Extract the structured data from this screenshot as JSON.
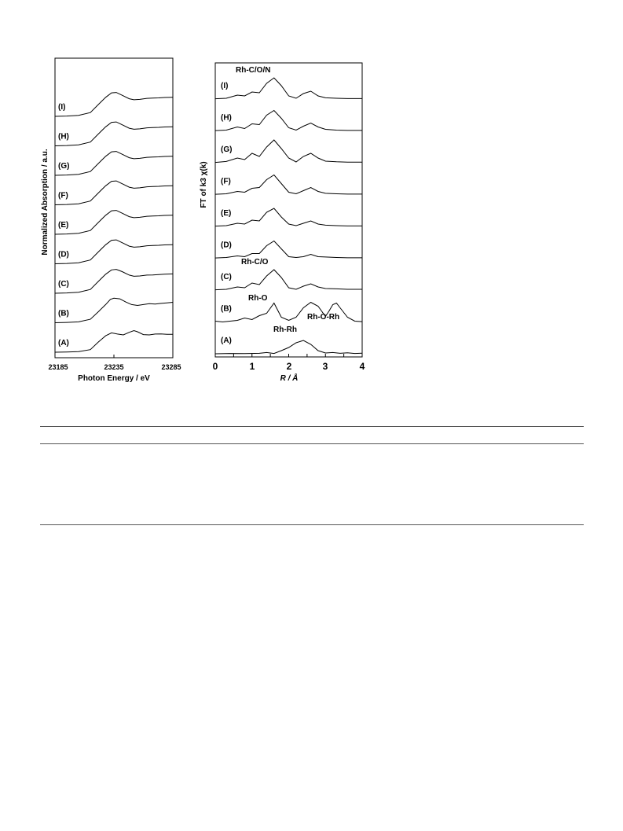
{
  "chart_data": [
    {
      "type": "line",
      "xlabel": "Photon Energy / eV",
      "ylabel": "Normalized Absorption / a.u.",
      "xlim": [
        23185,
        23285
      ],
      "xticks": [
        "23185",
        "23235",
        "23285"
      ],
      "grid": false,
      "series": [
        {
          "name": "(A)",
          "x": [
            23185,
            23195,
            23205,
            23215,
            23222,
            23228,
            23233,
            23238,
            23243,
            23248,
            23252,
            23255,
            23260,
            23265,
            23270,
            23275,
            23280,
            23285
          ],
          "y": [
            0.0,
            0.01,
            0.03,
            0.15,
            0.6,
            0.95,
            1.12,
            1.05,
            1.0,
            1.15,
            1.25,
            1.18,
            1.02,
            1.0,
            1.05,
            1.06,
            1.03,
            1.03
          ]
        },
        {
          "name": "(B)",
          "x": [
            23185,
            23195,
            23205,
            23215,
            23222,
            23228,
            23232,
            23235,
            23240,
            23245,
            23250,
            23255,
            23260,
            23265,
            23270,
            23275,
            23280,
            23285
          ],
          "y": [
            0.0,
            0.02,
            0.05,
            0.2,
            0.65,
            1.05,
            1.35,
            1.42,
            1.38,
            1.2,
            1.05,
            1.0,
            1.05,
            1.1,
            1.08,
            1.12,
            1.15,
            1.18
          ]
        },
        {
          "name": "(C)",
          "x": [
            23185,
            23195,
            23205,
            23215,
            23222,
            23228,
            23233,
            23237,
            23242,
            23248,
            23252,
            23257,
            23263,
            23268,
            23273,
            23278,
            23285
          ],
          "y": [
            0.0,
            0.02,
            0.06,
            0.22,
            0.7,
            1.1,
            1.35,
            1.38,
            1.25,
            1.05,
            0.98,
            1.0,
            1.05,
            1.06,
            1.08,
            1.1,
            1.12
          ]
        },
        {
          "name": "(D)",
          "x": [
            23185,
            23195,
            23205,
            23215,
            23222,
            23228,
            23233,
            23237,
            23242,
            23248,
            23252,
            23257,
            23263,
            23268,
            23273,
            23278,
            23285
          ],
          "y": [
            0.0,
            0.02,
            0.06,
            0.22,
            0.7,
            1.1,
            1.36,
            1.38,
            1.22,
            1.02,
            0.96,
            0.98,
            1.04,
            1.06,
            1.07,
            1.09,
            1.1
          ]
        },
        {
          "name": "(E)",
          "x": [
            23185,
            23195,
            23205,
            23215,
            23222,
            23228,
            23233,
            23237,
            23242,
            23248,
            23252,
            23257,
            23263,
            23268,
            23273,
            23278,
            23285
          ],
          "y": [
            0.0,
            0.02,
            0.06,
            0.22,
            0.7,
            1.1,
            1.36,
            1.38,
            1.22,
            1.02,
            0.96,
            0.98,
            1.04,
            1.06,
            1.07,
            1.09,
            1.1
          ]
        },
        {
          "name": "(F)",
          "x": [
            23185,
            23195,
            23205,
            23215,
            23222,
            23228,
            23233,
            23237,
            23242,
            23248,
            23252,
            23257,
            23263,
            23268,
            23273,
            23278,
            23285
          ],
          "y": [
            0.0,
            0.02,
            0.06,
            0.22,
            0.7,
            1.1,
            1.36,
            1.38,
            1.22,
            1.02,
            0.96,
            0.98,
            1.04,
            1.06,
            1.07,
            1.09,
            1.1
          ]
        },
        {
          "name": "(G)",
          "x": [
            23185,
            23195,
            23205,
            23215,
            23222,
            23228,
            23233,
            23237,
            23242,
            23248,
            23252,
            23257,
            23263,
            23268,
            23273,
            23278,
            23285
          ],
          "y": [
            0.0,
            0.02,
            0.06,
            0.22,
            0.7,
            1.1,
            1.36,
            1.38,
            1.22,
            1.02,
            0.96,
            0.98,
            1.04,
            1.06,
            1.07,
            1.09,
            1.1
          ]
        },
        {
          "name": "(H)",
          "x": [
            23185,
            23195,
            23205,
            23215,
            23222,
            23228,
            23233,
            23237,
            23242,
            23248,
            23252,
            23257,
            23263,
            23268,
            23273,
            23278,
            23285
          ],
          "y": [
            0.0,
            0.02,
            0.06,
            0.22,
            0.7,
            1.1,
            1.36,
            1.38,
            1.22,
            1.02,
            0.96,
            0.98,
            1.04,
            1.06,
            1.07,
            1.09,
            1.1
          ]
        },
        {
          "name": "(I)",
          "x": [
            23185,
            23195,
            23205,
            23215,
            23222,
            23228,
            23233,
            23237,
            23242,
            23248,
            23252,
            23257,
            23263,
            23268,
            23273,
            23278,
            23285
          ],
          "y": [
            0.0,
            0.02,
            0.06,
            0.22,
            0.7,
            1.1,
            1.36,
            1.38,
            1.22,
            1.02,
            0.96,
            0.98,
            1.04,
            1.06,
            1.07,
            1.09,
            1.1
          ]
        }
      ]
    },
    {
      "type": "line",
      "xlabel": "R / Å",
      "ylabel": "FT of k3 χ(k)",
      "xlim": [
        0,
        4
      ],
      "xticks": [
        "0",
        "1",
        "2",
        "3",
        "4"
      ],
      "grid": false,
      "annotations": [
        "Rh-C/O/N",
        "Rh-C/O",
        "Rh-O",
        "Rh-O-Rh",
        "Rh-Rh"
      ],
      "series": [
        {
          "name": "(A)",
          "x": [
            0,
            0.4,
            0.8,
            1.2,
            1.4,
            1.6,
            1.8,
            2.0,
            2.2,
            2.4,
            2.6,
            2.8,
            3.0,
            3.2,
            3.4,
            3.6,
            3.8,
            4.0
          ],
          "y": [
            0.0,
            0.02,
            0.01,
            0.03,
            0.08,
            0.02,
            0.2,
            0.4,
            0.7,
            0.85,
            0.6,
            0.2,
            0.05,
            0.08,
            0.03,
            0.06,
            0.02,
            0.04
          ]
        },
        {
          "name": "(B)",
          "x": [
            0,
            0.2,
            0.4,
            0.6,
            0.8,
            1.0,
            1.2,
            1.4,
            1.6,
            1.8,
            2.0,
            2.2,
            2.4,
            2.6,
            2.8,
            3.0,
            3.1,
            3.2,
            3.3,
            3.4,
            3.6,
            3.8,
            4.0
          ],
          "y": [
            0.05,
            0.0,
            0.05,
            0.1,
            0.25,
            0.15,
            0.4,
            0.55,
            1.2,
            0.3,
            0.1,
            0.3,
            0.9,
            1.25,
            1.0,
            0.35,
            0.7,
            1.1,
            1.2,
            0.9,
            0.3,
            0.05,
            0.02
          ]
        },
        {
          "name": "(C)",
          "x": [
            0,
            0.3,
            0.6,
            0.8,
            1.0,
            1.2,
            1.4,
            1.6,
            1.8,
            2.0,
            2.2,
            2.4,
            2.6,
            2.8,
            3.0,
            3.3,
            3.6,
            4.0
          ],
          "y": [
            0.02,
            0.05,
            0.2,
            0.15,
            0.45,
            0.35,
            0.9,
            1.3,
            0.8,
            0.15,
            0.05,
            0.25,
            0.4,
            0.2,
            0.1,
            0.08,
            0.05,
            0.05
          ]
        },
        {
          "name": "(D)",
          "x": [
            0,
            0.3,
            0.6,
            0.8,
            1.0,
            1.2,
            1.4,
            1.6,
            1.8,
            2.0,
            2.2,
            2.4,
            2.6,
            2.8,
            3.0,
            3.3,
            3.6,
            4.0
          ],
          "y": [
            0.02,
            0.05,
            0.15,
            0.1,
            0.3,
            0.3,
            0.8,
            1.1,
            0.6,
            0.1,
            0.05,
            0.1,
            0.25,
            0.1,
            0.08,
            0.05,
            0.03,
            0.03
          ]
        },
        {
          "name": "(E)",
          "x": [
            0,
            0.3,
            0.6,
            0.8,
            1.0,
            1.2,
            1.4,
            1.6,
            1.8,
            2.0,
            2.2,
            2.4,
            2.6,
            2.8,
            3.0,
            3.3,
            3.6,
            4.0
          ],
          "y": [
            0.02,
            0.05,
            0.2,
            0.15,
            0.4,
            0.35,
            0.9,
            1.15,
            0.6,
            0.15,
            0.05,
            0.2,
            0.35,
            0.15,
            0.08,
            0.05,
            0.03,
            0.03
          ]
        },
        {
          "name": "(F)",
          "x": [
            0,
            0.3,
            0.6,
            0.8,
            1.0,
            1.2,
            1.4,
            1.6,
            1.8,
            2.0,
            2.2,
            2.4,
            2.6,
            2.8,
            3.0,
            3.3,
            3.6,
            4.0
          ],
          "y": [
            0.02,
            0.05,
            0.2,
            0.15,
            0.4,
            0.45,
            0.95,
            1.25,
            0.7,
            0.15,
            0.05,
            0.25,
            0.45,
            0.2,
            0.08,
            0.05,
            0.03,
            0.03
          ]
        },
        {
          "name": "(G)",
          "x": [
            0,
            0.3,
            0.6,
            0.8,
            1.0,
            1.2,
            1.4,
            1.6,
            1.8,
            2.0,
            2.2,
            2.4,
            2.6,
            2.8,
            3.0,
            3.3,
            3.6,
            4.0
          ],
          "y": [
            0.02,
            0.08,
            0.3,
            0.2,
            0.6,
            0.4,
            1.0,
            1.45,
            0.9,
            0.3,
            0.05,
            0.4,
            0.6,
            0.3,
            0.1,
            0.06,
            0.04,
            0.04
          ]
        },
        {
          "name": "(H)",
          "x": [
            0,
            0.3,
            0.6,
            0.8,
            1.0,
            1.2,
            1.4,
            1.6,
            1.8,
            2.0,
            2.2,
            2.4,
            2.6,
            2.8,
            3.0,
            3.3,
            3.6,
            4.0
          ],
          "y": [
            0.02,
            0.05,
            0.25,
            0.15,
            0.45,
            0.4,
            1.0,
            1.3,
            0.8,
            0.2,
            0.05,
            0.3,
            0.5,
            0.25,
            0.1,
            0.05,
            0.03,
            0.03
          ]
        },
        {
          "name": "(I)",
          "x": [
            0,
            0.3,
            0.6,
            0.8,
            1.0,
            1.2,
            1.4,
            1.6,
            1.8,
            2.0,
            2.2,
            2.4,
            2.6,
            2.8,
            3.0,
            3.3,
            3.6,
            4.0
          ],
          "y": [
            0.02,
            0.05,
            0.25,
            0.2,
            0.45,
            0.4,
            1.0,
            1.35,
            0.85,
            0.2,
            0.05,
            0.35,
            0.5,
            0.2,
            0.08,
            0.05,
            0.03,
            0.03
          ]
        }
      ]
    }
  ]
}
